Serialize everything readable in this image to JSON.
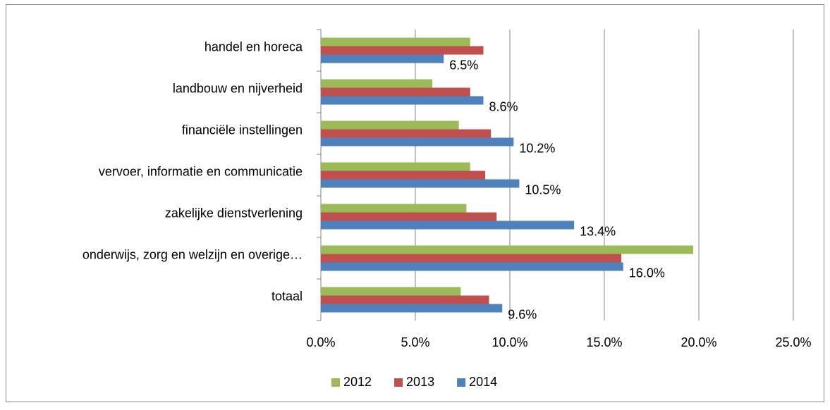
{
  "chart_data": {
    "type": "bar",
    "orientation": "horizontal",
    "categories": [
      "handel en horeca",
      "landbouw en nijverheid",
      "financiële instellingen",
      "vervoer, informatie en communicatie",
      "zakelijke dienstverlening",
      "onderwijs, zorg en welzijn en overige…",
      "totaal"
    ],
    "series": [
      {
        "name": "2012",
        "color": "#9bbb59",
        "values": [
          7.9,
          5.9,
          7.3,
          7.9,
          7.7,
          19.7,
          7.4
        ]
      },
      {
        "name": "2013",
        "color": "#c0504d",
        "values": [
          8.6,
          7.9,
          9.0,
          8.7,
          9.3,
          15.9,
          8.9
        ]
      },
      {
        "name": "2014",
        "color": "#4f81bd",
        "values": [
          6.5,
          8.6,
          10.2,
          10.5,
          13.4,
          16.0,
          9.6
        ],
        "value_labels": [
          "6.5%",
          "8.6%",
          "10.2%",
          "10.5%",
          "13.4%",
          "16.0%",
          "9.6%"
        ]
      }
    ],
    "xlim": [
      0,
      25
    ],
    "xticks": [
      {
        "value": 0,
        "label": "0.0%"
      },
      {
        "value": 5,
        "label": "5.0%"
      },
      {
        "value": 10,
        "label": "10.0%"
      },
      {
        "value": 15,
        "label": "15.0%"
      },
      {
        "value": 20,
        "label": "20.0%"
      },
      {
        "value": 25,
        "label": "25.0%"
      }
    ],
    "grid": true,
    "legend": "bottom"
  }
}
